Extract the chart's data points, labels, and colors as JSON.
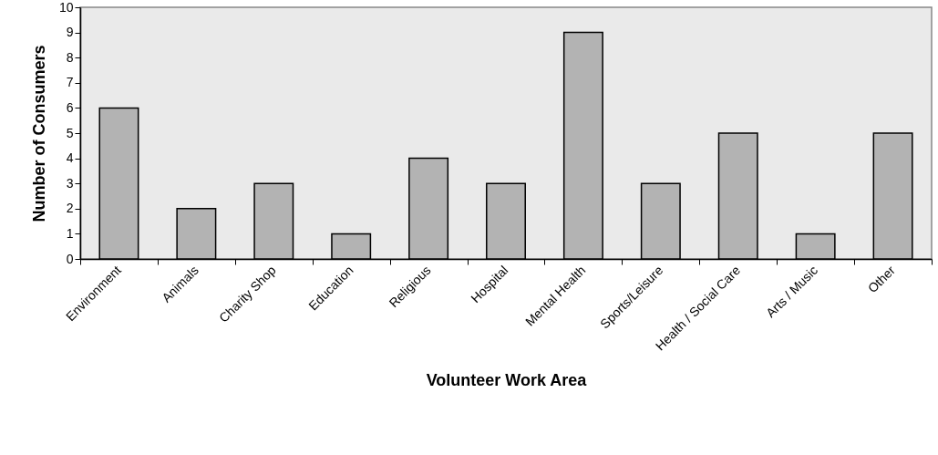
{
  "chart_data": {
    "type": "bar",
    "xlabel": "Volunteer Work Area",
    "ylabel": "Number of Consumers",
    "categories": [
      "Environment",
      "Animals",
      "Charity Shop",
      "Education",
      "Religious",
      "Hospital",
      "Mental Health",
      "Sports/Leisure",
      "Health / Social Care",
      "Arts / Music",
      "Other"
    ],
    "values": [
      6,
      2,
      3,
      1,
      4,
      3,
      9,
      3,
      5,
      1,
      5
    ],
    "color": "#b3b3b3",
    "ylim": [
      0,
      10
    ],
    "yticks": [
      0,
      1,
      2,
      3,
      4,
      5,
      6,
      7,
      8,
      9,
      10
    ],
    "grid": false
  }
}
